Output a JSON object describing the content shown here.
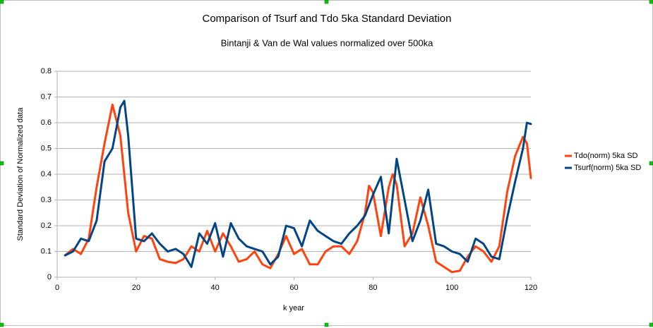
{
  "chart_data": {
    "type": "line",
    "title": "Comparison of Tsurf and Tdo 5ka Standard Deviation",
    "subtitle": "Bintanji & Van de Wal values normalized over 500ka",
    "x_label": "k year",
    "y_label": "Standard Deviation of Normalized data",
    "xlim": [
      0,
      120
    ],
    "xticks": [
      0,
      20,
      40,
      60,
      80,
      100,
      120
    ],
    "ylim": [
      0,
      0.8
    ],
    "yticks": [
      0,
      0.1,
      0.2,
      0.3,
      0.4,
      0.5,
      0.6,
      0.7,
      0.8
    ],
    "grid": true,
    "legend": "right",
    "series": [
      {
        "name": "Tdo(norm) 5ka SD",
        "color": "#ff420e",
        "x": [
          2,
          4,
          6,
          8,
          10,
          12,
          14,
          16,
          18,
          20,
          22,
          24,
          26,
          28,
          30,
          32,
          34,
          36,
          38,
          40,
          42,
          44,
          46,
          48,
          50,
          52,
          54,
          56,
          58,
          60,
          62,
          64,
          66,
          68,
          70,
          72,
          74,
          76,
          78,
          79,
          80,
          82,
          84,
          85,
          86,
          88,
          90,
          92,
          94,
          96,
          98,
          100,
          102,
          104,
          106,
          108,
          110,
          112,
          114,
          116,
          118,
          119,
          120
        ],
        "values": [
          0.085,
          0.11,
          0.09,
          0.15,
          0.35,
          0.52,
          0.67,
          0.55,
          0.25,
          0.1,
          0.16,
          0.15,
          0.07,
          0.06,
          0.055,
          0.07,
          0.12,
          0.1,
          0.18,
          0.1,
          0.17,
          0.12,
          0.06,
          0.07,
          0.1,
          0.05,
          0.035,
          0.09,
          0.16,
          0.09,
          0.11,
          0.05,
          0.05,
          0.1,
          0.12,
          0.12,
          0.09,
          0.14,
          0.25,
          0.355,
          0.33,
          0.16,
          0.35,
          0.4,
          0.36,
          0.12,
          0.17,
          0.31,
          0.2,
          0.06,
          0.04,
          0.02,
          0.025,
          0.08,
          0.12,
          0.1,
          0.06,
          0.12,
          0.33,
          0.47,
          0.545,
          0.52,
          0.385
        ]
      },
      {
        "name": "Tsurf(norm) 5ka SD",
        "color": "#004586",
        "x": [
          2,
          4,
          6,
          8,
          10,
          12,
          14,
          16,
          17,
          18,
          20,
          22,
          24,
          26,
          28,
          30,
          32,
          34,
          36,
          38,
          40,
          42,
          44,
          46,
          48,
          50,
          52,
          54,
          56,
          58,
          60,
          62,
          64,
          66,
          68,
          70,
          72,
          74,
          76,
          78,
          80,
          82,
          84,
          86,
          88,
          90,
          92,
          94,
          96,
          98,
          100,
          102,
          104,
          106,
          108,
          110,
          112,
          114,
          116,
          118,
          119,
          120
        ],
        "values": [
          0.085,
          0.1,
          0.15,
          0.14,
          0.22,
          0.45,
          0.5,
          0.66,
          0.685,
          0.55,
          0.15,
          0.14,
          0.17,
          0.13,
          0.1,
          0.11,
          0.09,
          0.04,
          0.17,
          0.13,
          0.21,
          0.08,
          0.21,
          0.15,
          0.12,
          0.11,
          0.1,
          0.05,
          0.08,
          0.2,
          0.19,
          0.12,
          0.22,
          0.18,
          0.16,
          0.14,
          0.13,
          0.17,
          0.2,
          0.24,
          0.32,
          0.39,
          0.17,
          0.46,
          0.3,
          0.14,
          0.22,
          0.34,
          0.13,
          0.12,
          0.1,
          0.09,
          0.06,
          0.15,
          0.13,
          0.08,
          0.07,
          0.23,
          0.37,
          0.5,
          0.6,
          0.595
        ]
      }
    ]
  }
}
